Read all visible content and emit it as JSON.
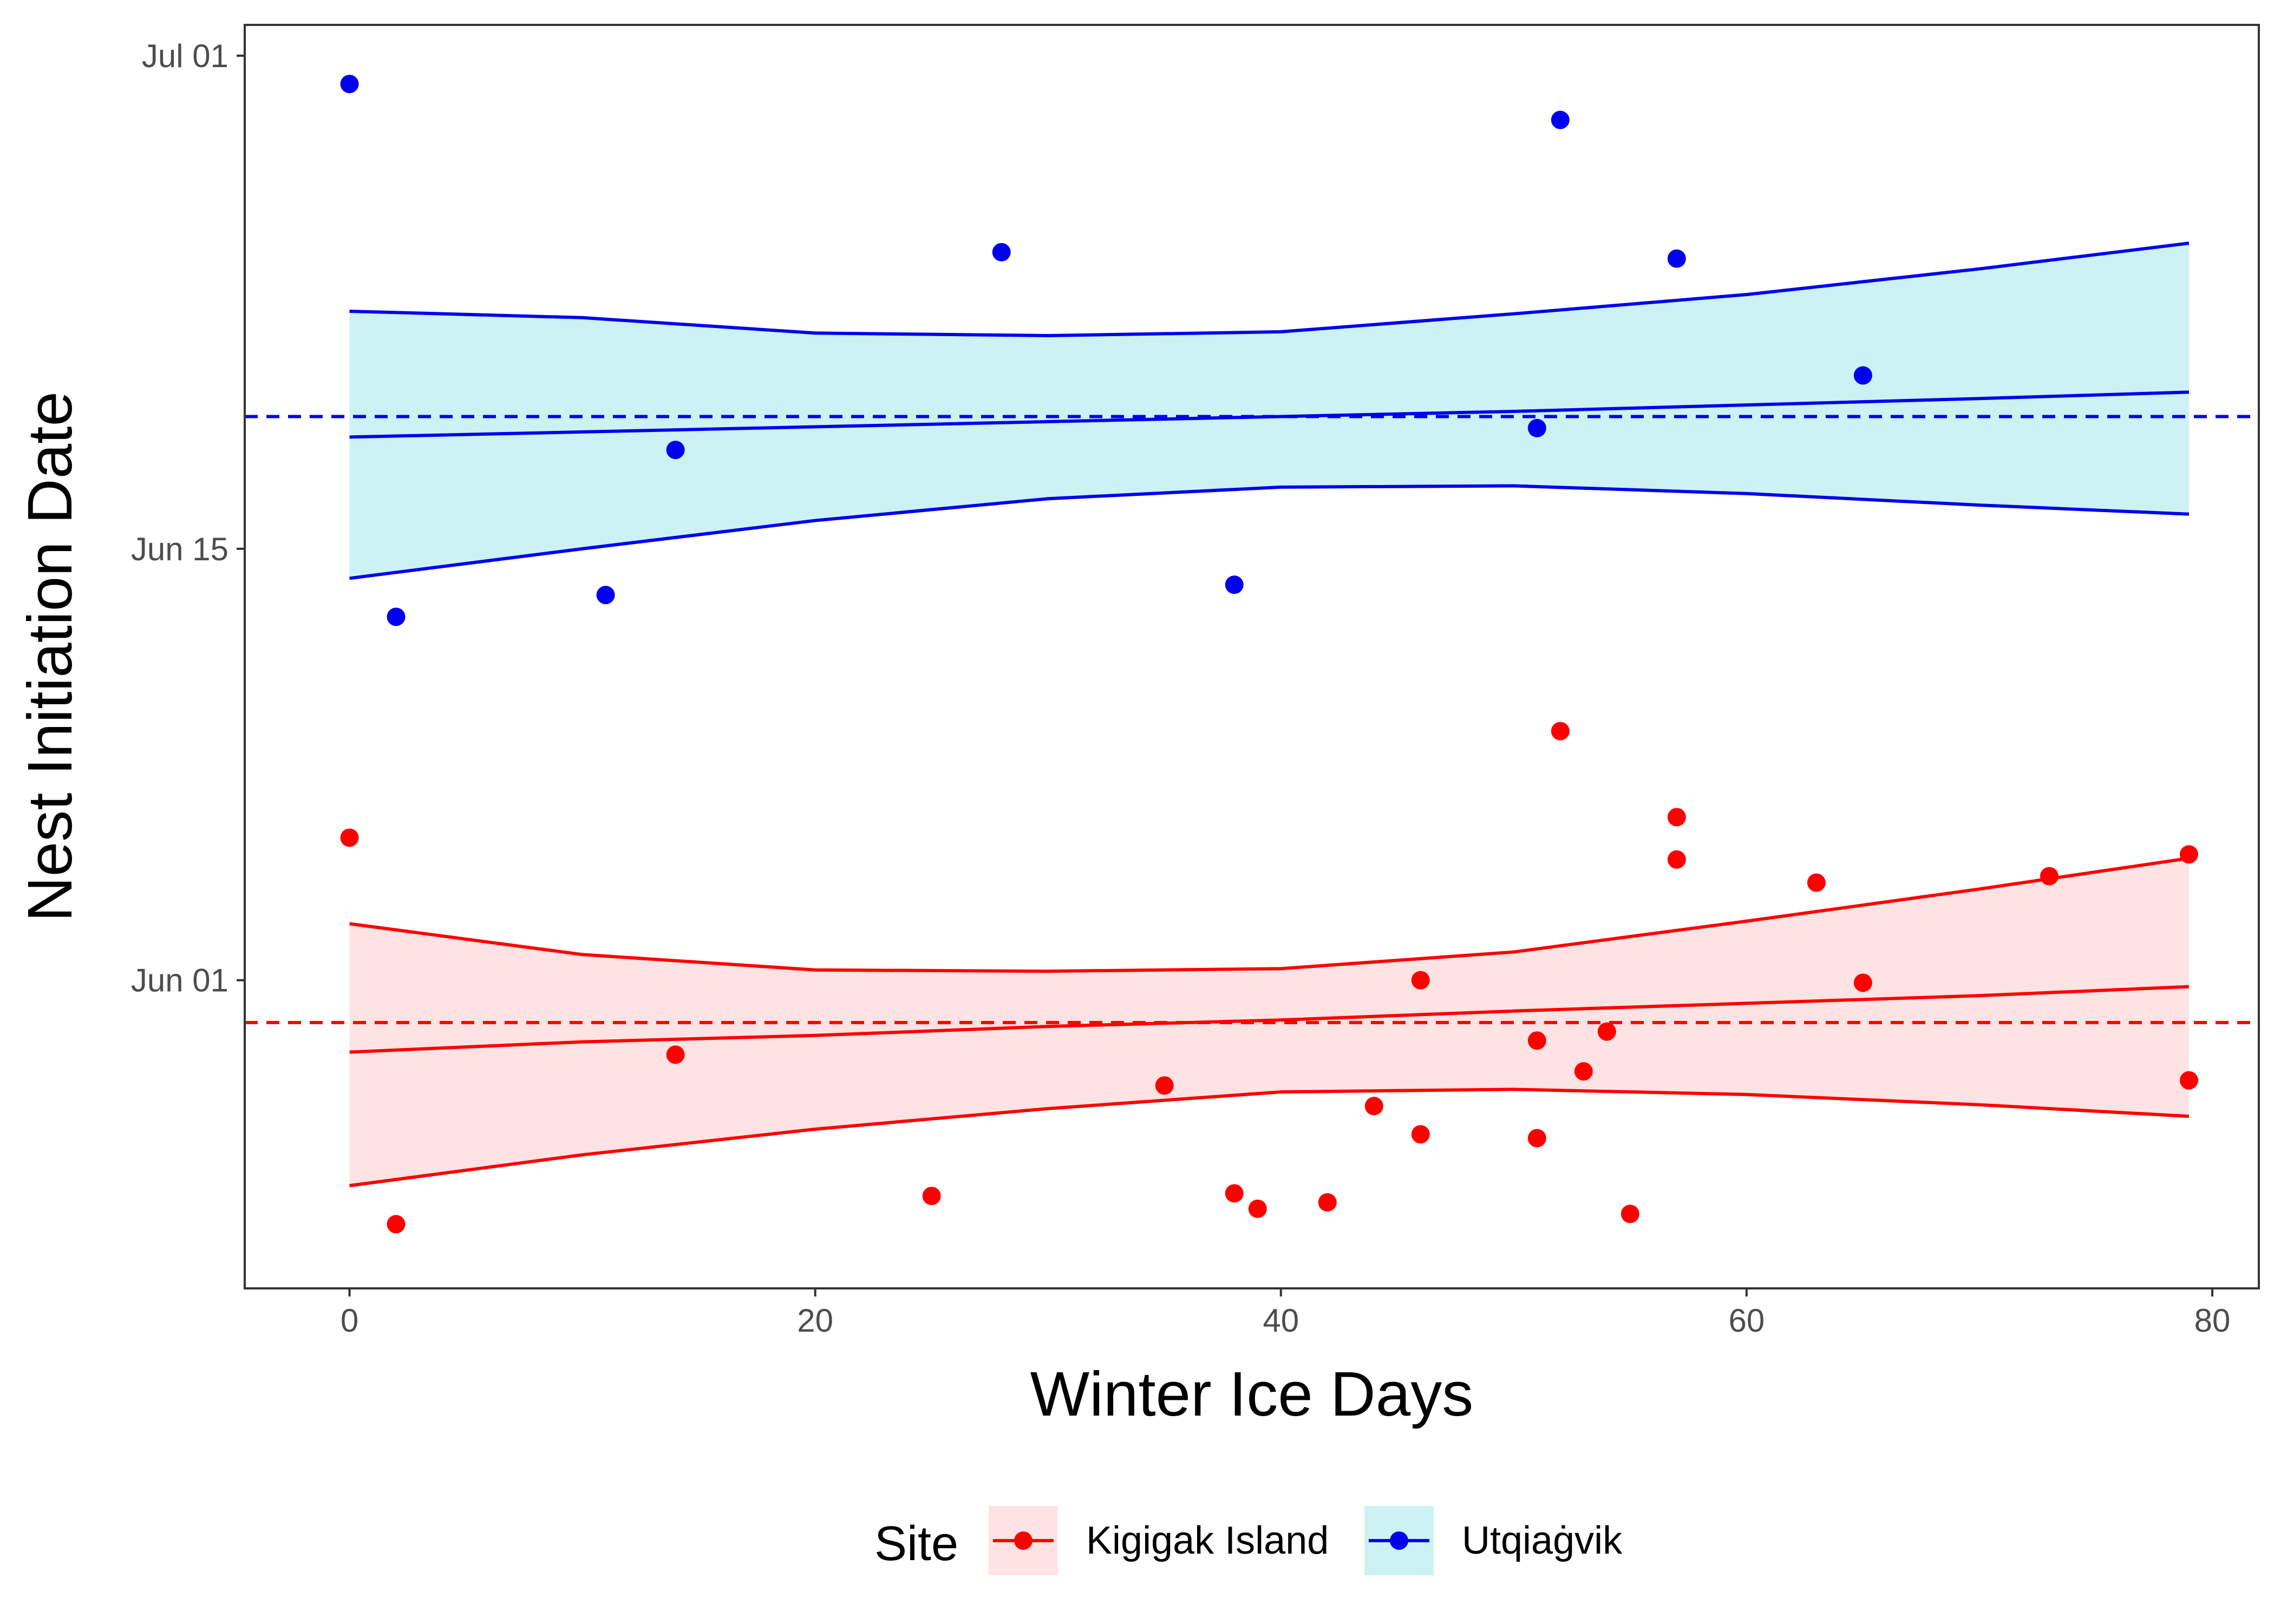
{
  "chart_data": {
    "type": "scatter",
    "xlabel": "Winter Ice Days",
    "ylabel": "Nest Initiation Date",
    "xlim": [
      -4.5,
      82
    ],
    "ylim": [
      "2018-05-22",
      "2018-07-02"
    ],
    "x_ticks": [
      0,
      20,
      40,
      60,
      80
    ],
    "y_ticks": [
      {
        "value": "2018-07-01",
        "label": "Jul 01"
      },
      {
        "value": "2018-06-15",
        "label": "Jun 15"
      },
      {
        "value": "2018-06-01",
        "label": "Jun 01"
      }
    ],
    "grid": false,
    "legend": {
      "title": "Site",
      "position": "bottom",
      "items": [
        {
          "label": "Kigigak Island",
          "color": "#ff0000",
          "fill": "#fde3e3"
        },
        {
          "label": "Utqiaġvik",
          "color": "#0000ee",
          "fill": "#ccf2f3"
        }
      ]
    },
    "series": [
      {
        "name": "Kigigak Island",
        "color": "#ff0000",
        "band_fill": "#fde3e3",
        "mean_date": "2018-05-30 15:00",
        "points": [
          {
            "x": 0,
            "y": "2018-06-05 15:00"
          },
          {
            "x": 2,
            "y": "2018-05-24 02:00"
          },
          {
            "x": 14,
            "y": "2018-05-29 14:00"
          },
          {
            "x": 25,
            "y": "2018-05-25 00:00"
          },
          {
            "x": 35,
            "y": "2018-05-28 14:00"
          },
          {
            "x": 38,
            "y": "2018-05-25 02:00"
          },
          {
            "x": 39,
            "y": "2018-05-24 14:00"
          },
          {
            "x": 42,
            "y": "2018-05-24 19:00"
          },
          {
            "x": 44,
            "y": "2018-05-27 22:00"
          },
          {
            "x": 46,
            "y": "2018-06-01 00:00"
          },
          {
            "x": 46,
            "y": "2018-05-27 00:00"
          },
          {
            "x": 51,
            "y": "2018-05-30 01:00"
          },
          {
            "x": 51,
            "y": "2018-05-26 21:00"
          },
          {
            "x": 52,
            "y": "2018-06-09 02:00"
          },
          {
            "x": 53,
            "y": "2018-05-29 01:00"
          },
          {
            "x": 54,
            "y": "2018-05-30 08:00"
          },
          {
            "x": 55,
            "y": "2018-05-24 10:00"
          },
          {
            "x": 57,
            "y": "2018-06-06 07:00"
          },
          {
            "x": 57,
            "y": "2018-06-04 22:00"
          },
          {
            "x": 63,
            "y": "2018-06-04 04:00"
          },
          {
            "x": 65,
            "y": "2018-05-31 22:00"
          },
          {
            "x": 73,
            "y": "2018-06-04 09:00"
          },
          {
            "x": 79,
            "y": "2018-06-05 02:00"
          },
          {
            "x": 79,
            "y": "2018-05-28 18:00"
          }
        ],
        "fit": {
          "x": [
            0,
            10,
            20,
            30,
            40,
            50,
            60,
            70,
            79
          ],
          "mid": [
            "2018-05-29 16:00",
            "2018-05-30 00:00",
            "2018-05-30 05:00",
            "2018-05-30 12:00",
            "2018-05-30 17:00",
            "2018-05-31 00:00",
            "2018-05-31 06:00",
            "2018-05-31 12:00",
            "2018-05-31 19:00"
          ],
          "lower": [
            "2018-05-25 08:00",
            "2018-05-26 08:00",
            "2018-05-27 04:00",
            "2018-05-27 20:00",
            "2018-05-28 09:00",
            "2018-05-28 11:00",
            "2018-05-28 07:00",
            "2018-05-27 23:00",
            "2018-05-27 14:00"
          ],
          "upper": [
            "2018-06-02 20:00",
            "2018-06-01 20:00",
            "2018-06-01 08:00",
            "2018-06-01 07:00",
            "2018-06-01 09:00",
            "2018-06-01 22:00",
            "2018-06-02 22:00",
            "2018-06-03 23:00",
            "2018-06-04 23:00"
          ]
        }
      },
      {
        "name": "Utqiaġvik",
        "color": "#0000ee",
        "band_fill": "#ccf2f3",
        "mean_date": "2018-06-19 07:00",
        "points": [
          {
            "x": 0,
            "y": "2018-06-30 02:00"
          },
          {
            "x": 2,
            "y": "2018-06-12 19:00"
          },
          {
            "x": 11,
            "y": "2018-06-13 12:00"
          },
          {
            "x": 14,
            "y": "2018-06-18 05:00"
          },
          {
            "x": 28,
            "y": "2018-06-24 15:00"
          },
          {
            "x": 38,
            "y": "2018-06-13 20:00"
          },
          {
            "x": 51,
            "y": "2018-06-18 22:00"
          },
          {
            "x": 52,
            "y": "2018-06-28 22:00"
          },
          {
            "x": 57,
            "y": "2018-06-24 10:00"
          },
          {
            "x": 65,
            "y": "2018-06-20 15:00"
          }
        ],
        "fit": {
          "x": [
            0,
            10,
            20,
            30,
            40,
            50,
            60,
            70,
            79
          ],
          "mid": [
            "2018-06-18 15:00",
            "2018-06-18 19:00",
            "2018-06-18 23:00",
            "2018-06-19 03:00",
            "2018-06-19 07:00",
            "2018-06-19 11:00",
            "2018-06-19 16:00",
            "2018-06-19 21:00",
            "2018-06-20 02:00"
          ],
          "lower": [
            "2018-06-14 01:00",
            "2018-06-15 00:00",
            "2018-06-15 22:00",
            "2018-06-16 15:00",
            "2018-06-17 00:00",
            "2018-06-17 01:00",
            "2018-06-16 19:00",
            "2018-06-16 10:00",
            "2018-06-16 03:00"
          ],
          "upper": [
            "2018-06-22 17:00",
            "2018-06-22 12:00",
            "2018-06-22 00:00",
            "2018-06-21 22:00",
            "2018-06-22 01:00",
            "2018-06-22 15:00",
            "2018-06-23 06:00",
            "2018-06-24 02:00",
            "2018-06-24 22:00"
          ]
        }
      }
    ]
  }
}
